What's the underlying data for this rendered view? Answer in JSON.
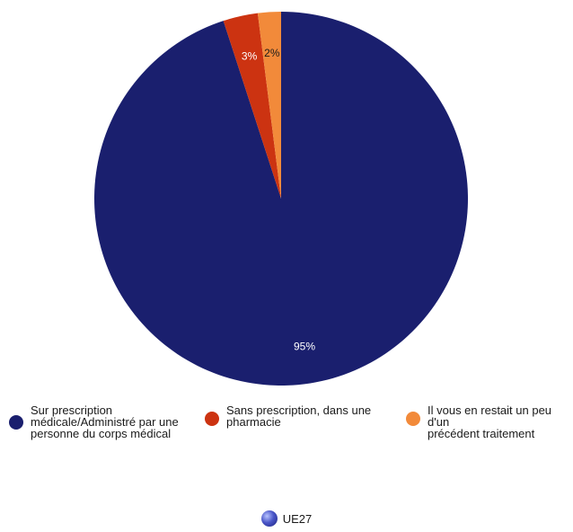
{
  "chart_data": {
    "type": "pie",
    "title": "",
    "slices": [
      {
        "label": "Sur prescription médicale/Administré par une personne du corps médical",
        "value": 95,
        "display": "95%",
        "color": "#1a1f6e",
        "text_color": "#ffffff"
      },
      {
        "label": "Sans prescription, dans une pharmacie",
        "value": 3,
        "display": "3%",
        "color": "#cc3311",
        "text_color": "#ffffff"
      },
      {
        "label": "Il vous en restait un peu d'un précédent traitement",
        "value": 2,
        "display": "2%",
        "color": "#f28a3a",
        "text_color": "#1a1a1a"
      }
    ],
    "legend_position": "bottom"
  },
  "legend": {
    "items": [
      {
        "label": "Sur prescription\nmédicale/Administré par une\npersonne du corps médical",
        "color": "#1a1f6e"
      },
      {
        "label": "Sans prescription, dans une\npharmacie",
        "color": "#cc3311"
      },
      {
        "label": "Il vous en restait un peu d'un\nprécédent traitement",
        "color": "#f28a3a"
      }
    ]
  },
  "footer": {
    "label": "UE27",
    "icon": "globe-icon"
  }
}
